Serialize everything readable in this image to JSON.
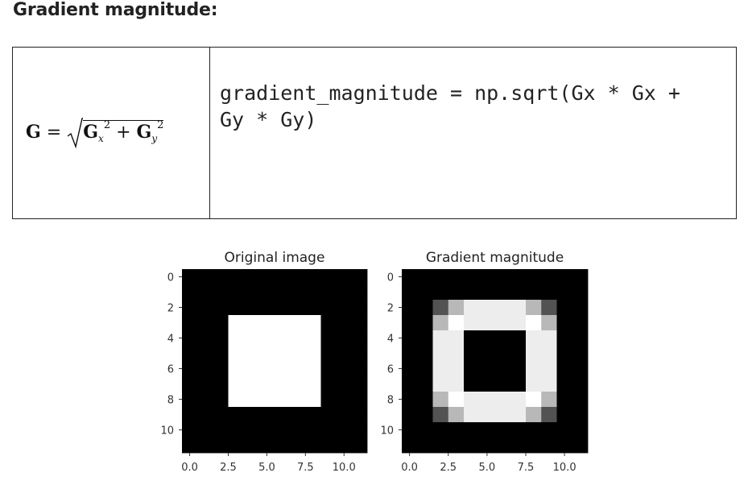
{
  "heading": "Gradient magnitude:",
  "formula": {
    "lhs": "G",
    "equals": "=",
    "term1": "G",
    "sub1": "x",
    "exp1": "2",
    "plus": "+",
    "term2": "G",
    "sub2": "y",
    "exp2": "2"
  },
  "code": {
    "line1": "gradient_magnitude = np.sqrt(Gx * Gx +",
    "line2": "Gy * Gy)"
  },
  "figures": [
    {
      "title": "Original image",
      "grid": [
        [
          0,
          0,
          0,
          0,
          0,
          0,
          0,
          0,
          0,
          0,
          0,
          0
        ],
        [
          0,
          0,
          0,
          0,
          0,
          0,
          0,
          0,
          0,
          0,
          0,
          0
        ],
        [
          0,
          0,
          0,
          0,
          0,
          0,
          0,
          0,
          0,
          0,
          0,
          0
        ],
        [
          0,
          0,
          0,
          1,
          1,
          1,
          1,
          1,
          1,
          0,
          0,
          0
        ],
        [
          0,
          0,
          0,
          1,
          1,
          1,
          1,
          1,
          1,
          0,
          0,
          0
        ],
        [
          0,
          0,
          0,
          1,
          1,
          1,
          1,
          1,
          1,
          0,
          0,
          0
        ],
        [
          0,
          0,
          0,
          1,
          1,
          1,
          1,
          1,
          1,
          0,
          0,
          0
        ],
        [
          0,
          0,
          0,
          1,
          1,
          1,
          1,
          1,
          1,
          0,
          0,
          0
        ],
        [
          0,
          0,
          0,
          1,
          1,
          1,
          1,
          1,
          1,
          0,
          0,
          0
        ],
        [
          0,
          0,
          0,
          0,
          0,
          0,
          0,
          0,
          0,
          0,
          0,
          0
        ],
        [
          0,
          0,
          0,
          0,
          0,
          0,
          0,
          0,
          0,
          0,
          0,
          0
        ],
        [
          0,
          0,
          0,
          0,
          0,
          0,
          0,
          0,
          0,
          0,
          0,
          0
        ]
      ],
      "yticks": [
        "0",
        "2",
        "4",
        "6",
        "8",
        "10"
      ],
      "xticks": [
        "0.0",
        "2.5",
        "5.0",
        "7.5",
        "10.0"
      ]
    },
    {
      "title": "Gradient magnitude",
      "grid": [
        [
          0,
          0,
          0,
          0,
          0,
          0,
          0,
          0,
          0,
          0,
          0,
          0
        ],
        [
          0,
          0,
          0,
          0,
          0,
          0,
          0,
          0,
          0,
          0,
          0,
          0
        ],
        [
          0,
          0,
          0.32,
          0.72,
          0.93,
          0.93,
          0.93,
          0.93,
          0.72,
          0.32,
          0,
          0
        ],
        [
          0,
          0,
          0.72,
          1,
          0.93,
          0.93,
          0.93,
          0.93,
          1,
          0.72,
          0,
          0
        ],
        [
          0,
          0,
          0.93,
          0.93,
          0,
          0,
          0,
          0,
          0.93,
          0.93,
          0,
          0
        ],
        [
          0,
          0,
          0.93,
          0.93,
          0,
          0,
          0,
          0,
          0.93,
          0.93,
          0,
          0
        ],
        [
          0,
          0,
          0.93,
          0.93,
          0,
          0,
          0,
          0,
          0.93,
          0.93,
          0,
          0
        ],
        [
          0,
          0,
          0.93,
          0.93,
          0,
          0,
          0,
          0,
          0.93,
          0.93,
          0,
          0
        ],
        [
          0,
          0,
          0.72,
          1,
          0.93,
          0.93,
          0.93,
          0.93,
          1,
          0.72,
          0,
          0
        ],
        [
          0,
          0,
          0.32,
          0.72,
          0.93,
          0.93,
          0.93,
          0.93,
          0.72,
          0.32,
          0,
          0
        ],
        [
          0,
          0,
          0,
          0,
          0,
          0,
          0,
          0,
          0,
          0,
          0,
          0
        ],
        [
          0,
          0,
          0,
          0,
          0,
          0,
          0,
          0,
          0,
          0,
          0,
          0
        ]
      ],
      "yticks": [
        "0",
        "2",
        "4",
        "6",
        "8",
        "10"
      ],
      "xticks": [
        "0.0",
        "2.5",
        "5.0",
        "7.5",
        "10.0"
      ]
    }
  ]
}
